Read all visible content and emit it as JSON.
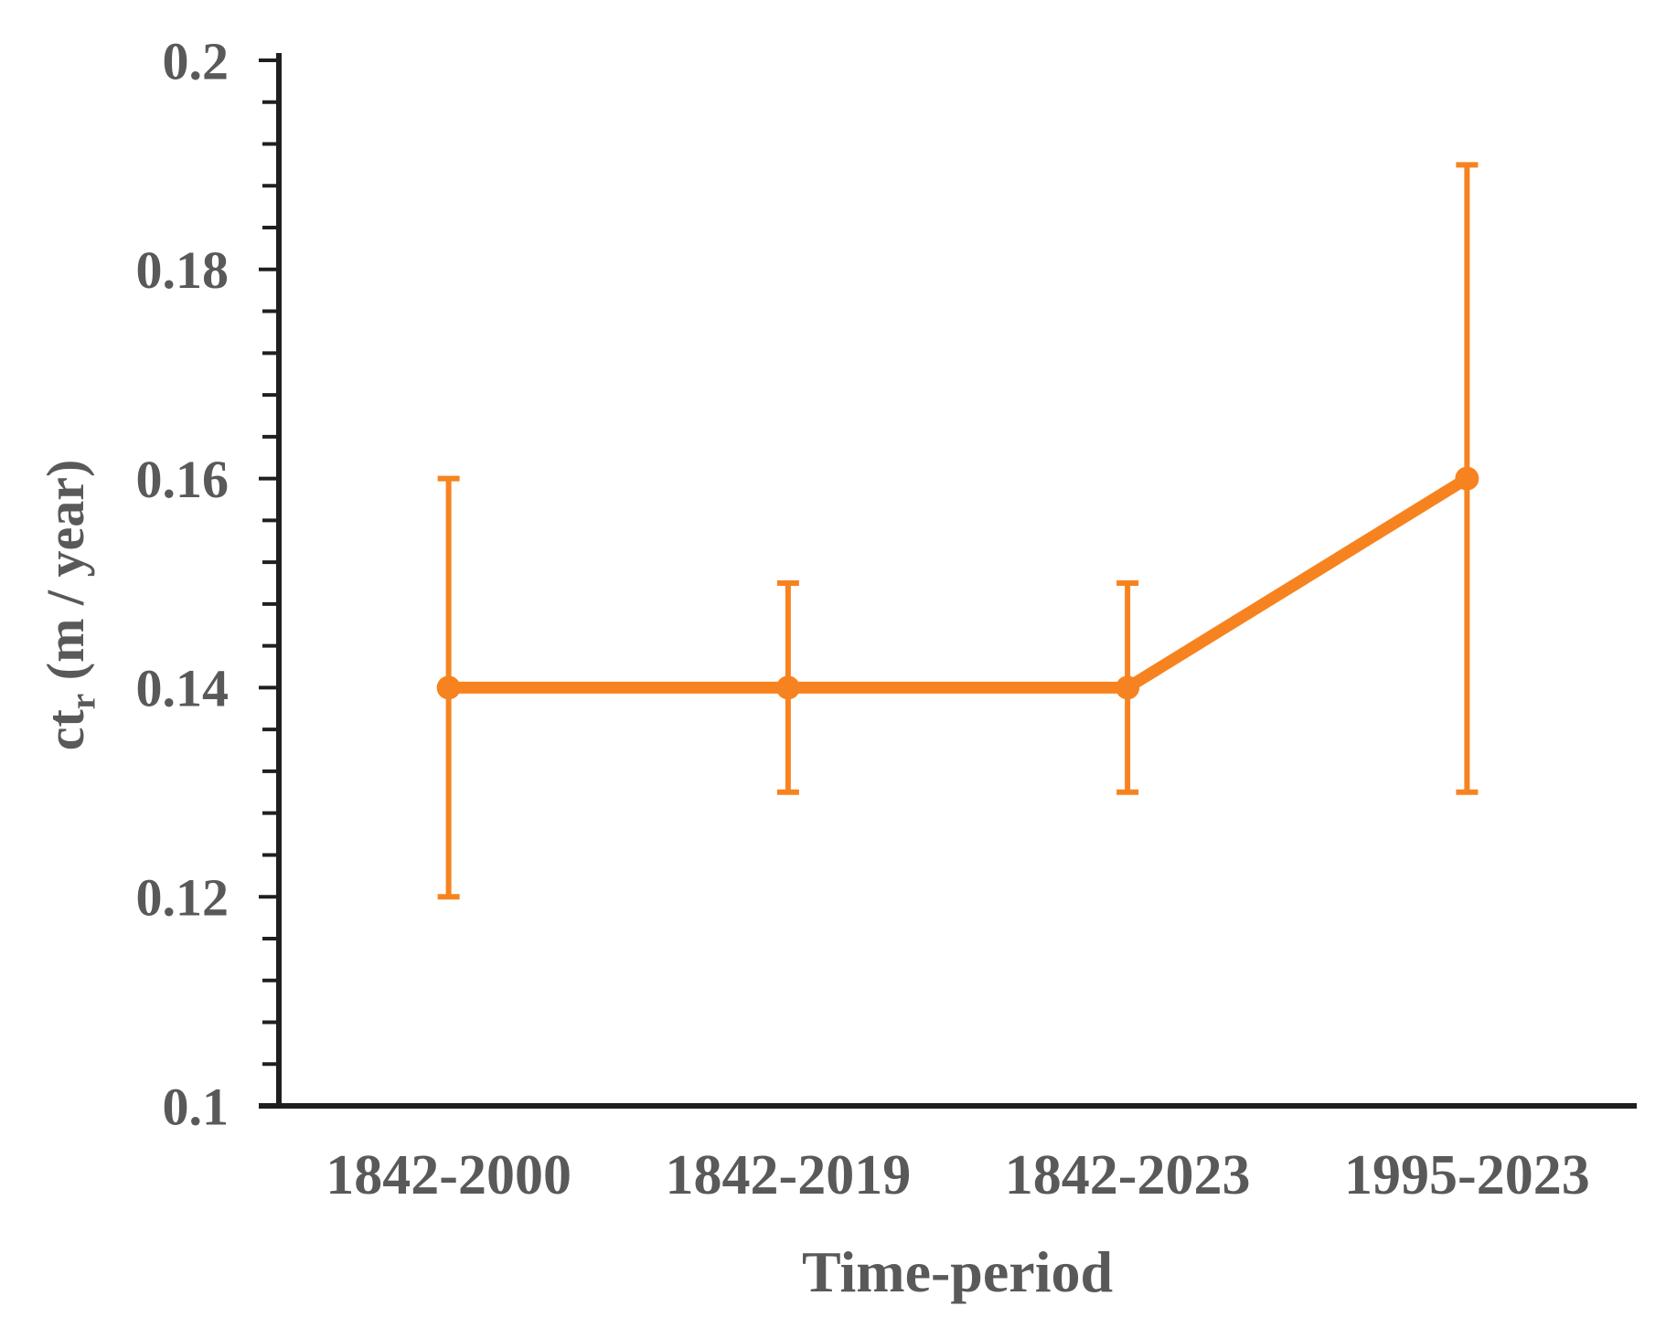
{
  "figure": {
    "background": "#ffffff",
    "axis_color": "#1f1f1f",
    "text_color": "#595959"
  },
  "chart_data": {
    "type": "line",
    "title": "",
    "xlabel": "Time-period",
    "ylabel": "ctr (m / year)",
    "ylabel_parts": {
      "pre": "ct",
      "sub": "r",
      "post": " (m / year)"
    },
    "categories": [
      "1842-2000",
      "1842-2019",
      "1842-2023",
      "1995-2023"
    ],
    "series": [
      {
        "name": "ctr",
        "values": [
          0.14,
          0.14,
          0.14,
          0.16
        ],
        "error_low": [
          0.12,
          0.13,
          0.13,
          0.13
        ],
        "error_high": [
          0.16,
          0.15,
          0.15,
          0.19
        ],
        "color": "#F78320",
        "marker": "circle"
      }
    ],
    "y_axis": {
      "min": 0.1,
      "max": 0.2,
      "major_unit": 0.02,
      "minor_unit": 0.004,
      "tick_labels": [
        "0.1",
        "0.12",
        "0.14",
        "0.16",
        "0.18",
        "0.2"
      ]
    },
    "x_axis": {
      "title": "Time-period"
    },
    "grid": false,
    "legend": "none"
  }
}
